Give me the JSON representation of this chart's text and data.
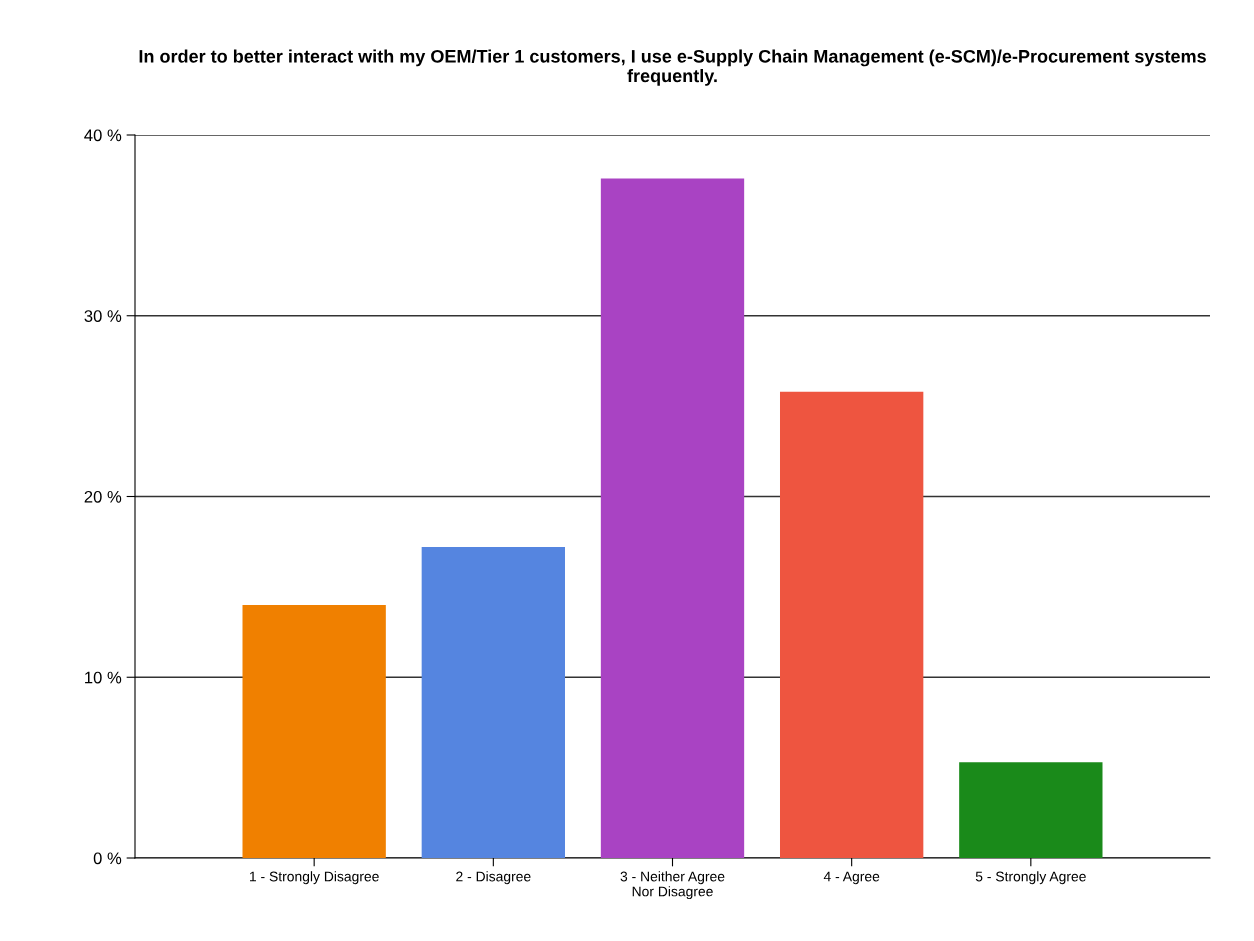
{
  "chart_data": {
    "type": "bar",
    "title": "In order to better interact with my OEM/Tier 1 customers, I use e-Supply Chain Management (e-SCM)/e-Procurement systems frequently.",
    "categories": [
      "1 - Strongly Disagree",
      "2 - Disagree",
      "3 - Neither Agree\nNor Disagree",
      "4 - Agree",
      "5 - Strongly Agree"
    ],
    "values": [
      14.0,
      17.2,
      37.6,
      25.8,
      5.3
    ],
    "colors": [
      "#f08000",
      "#5585e0",
      "#a943c3",
      "#ee5540",
      "#1a8a1a"
    ],
    "ylim": [
      0,
      40
    ],
    "yticks": [
      {
        "value": 0,
        "label": "0 %"
      },
      {
        "value": 10,
        "label": "10 %"
      },
      {
        "value": 20,
        "label": "20 %"
      },
      {
        "value": 30,
        "label": "30 %"
      },
      {
        "value": 40,
        "label": "40 %"
      }
    ],
    "grid": "y",
    "legend": false
  }
}
